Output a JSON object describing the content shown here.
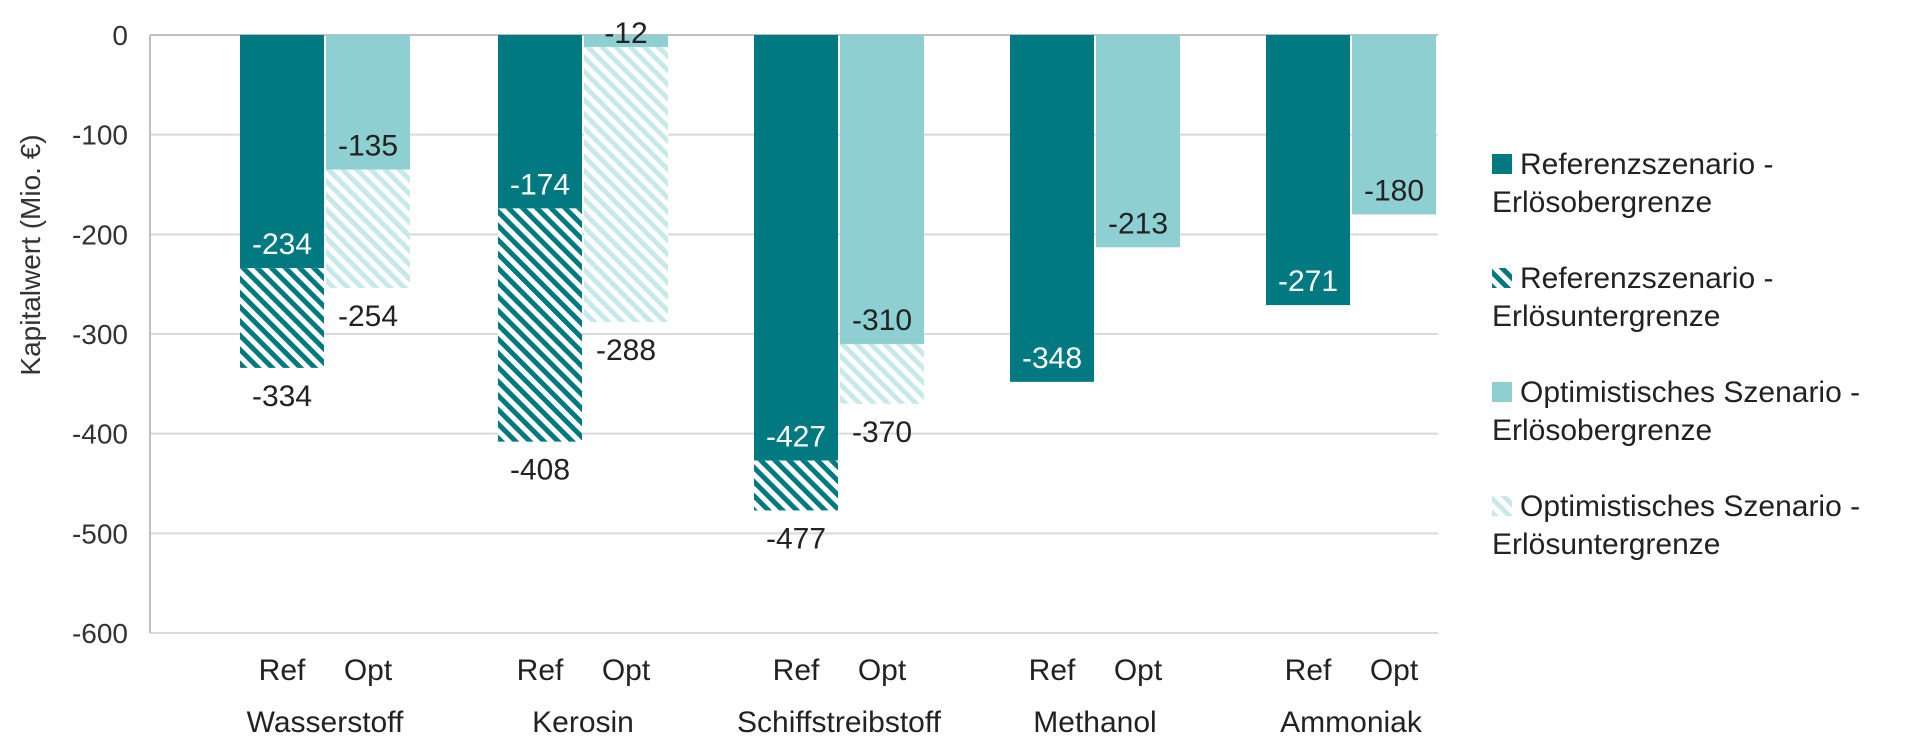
{
  "chart_data": {
    "type": "bar",
    "ylabel": "Kapitalwert (Mio. €)",
    "ylim": [
      -600,
      0
    ],
    "yticks": [
      0,
      -100,
      -200,
      -300,
      -400,
      -500,
      -600
    ],
    "grid": true,
    "legend_position": "right",
    "colors": {
      "ref": "#007a80",
      "opt": "#8ecfd1",
      "opt_hatch": "#c8e9ea",
      "gridline": "#d9d9d9",
      "axis": "#bfbfbf"
    },
    "groups": [
      {
        "name": "Wasserstoff",
        "bars": [
          {
            "sub": "Ref",
            "upper": -234,
            "lower": -334
          },
          {
            "sub": "Opt",
            "upper": -135,
            "lower": -254
          }
        ]
      },
      {
        "name": "Kerosin",
        "bars": [
          {
            "sub": "Ref",
            "upper": -174,
            "lower": -408
          },
          {
            "sub": "Opt",
            "upper": -12,
            "lower": -288
          }
        ]
      },
      {
        "name": "Schiffstreibstoff",
        "bars": [
          {
            "sub": "Ref",
            "upper": -427,
            "lower": -477
          },
          {
            "sub": "Opt",
            "upper": -310,
            "lower": -370
          }
        ]
      },
      {
        "name": "Methanol",
        "bars": [
          {
            "sub": "Ref",
            "upper": -348
          },
          {
            "sub": "Opt",
            "upper": -213
          }
        ]
      },
      {
        "name": "Ammoniak",
        "bars": [
          {
            "sub": "Ref",
            "upper": -271
          },
          {
            "sub": "Opt",
            "upper": -180
          }
        ]
      }
    ],
    "legend": [
      {
        "key": "ref_upper",
        "label_lines": [
          "Referenzszenario  -",
          "Erlösobergrenze"
        ]
      },
      {
        "key": "ref_lower",
        "label_lines": [
          "Referenzszenario  -",
          "Erlösuntergrenze"
        ]
      },
      {
        "key": "opt_upper",
        "label_lines": [
          "Optimistisches Szenario -",
          "Erlösobergrenze"
        ]
      },
      {
        "key": "opt_lower",
        "label_lines": [
          "Optimistisches Szenario -",
          "Erlösuntergrenze"
        ]
      }
    ]
  }
}
